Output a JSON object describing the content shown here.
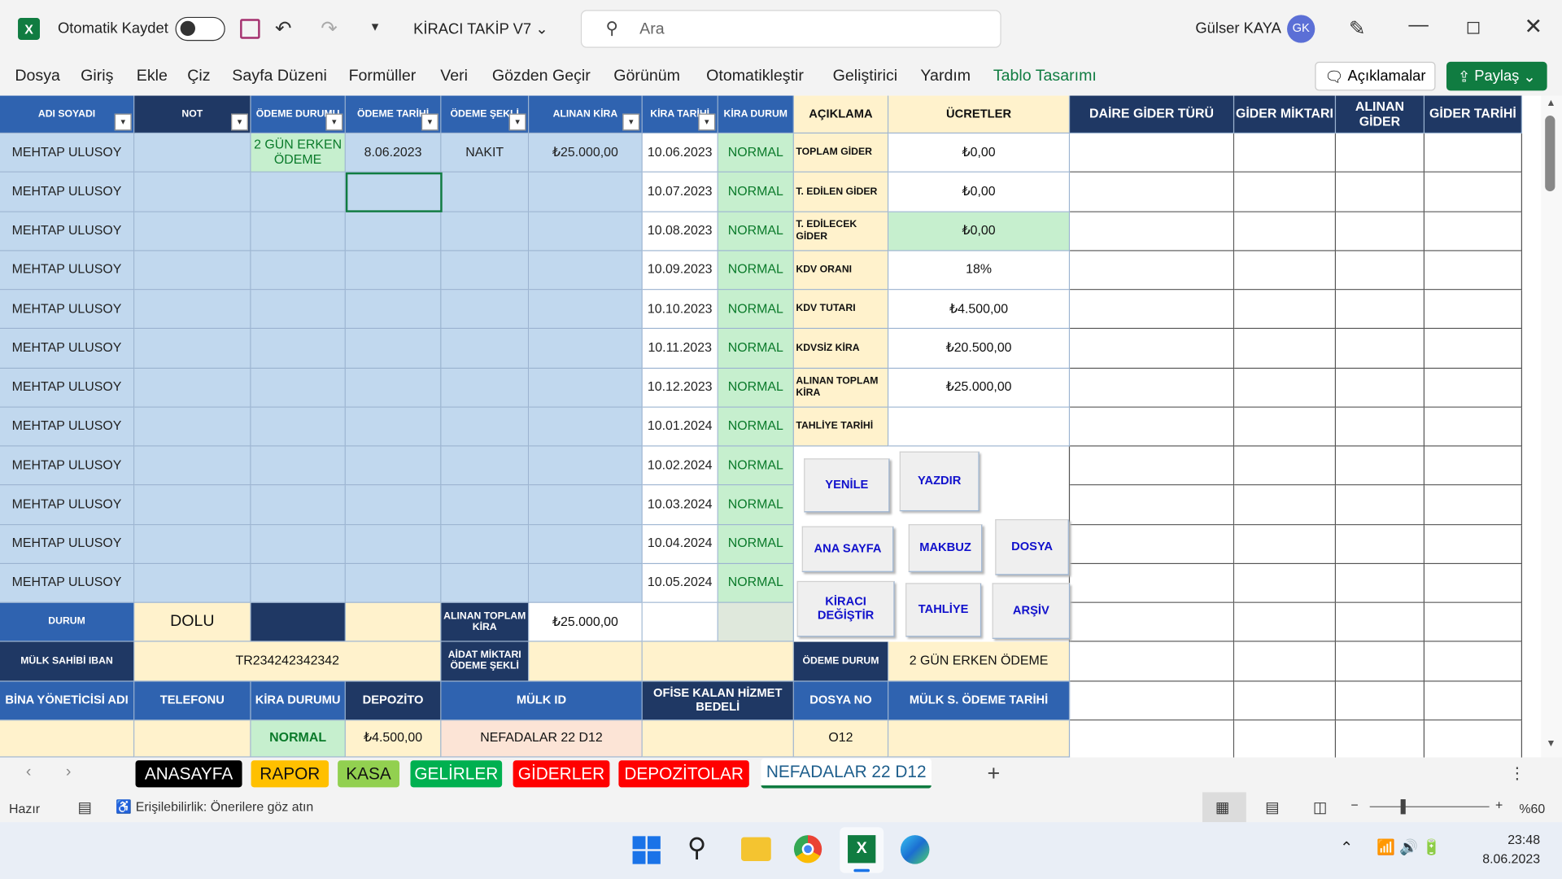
{
  "titlebar": {
    "autosave": "Otomatik Kaydet",
    "file": "KİRACI TAKİP V7",
    "search": "Ara",
    "user": "Gülser KAYA",
    "initials": "GK"
  },
  "ribbon": {
    "tabs": [
      "Dosya",
      "Giriş",
      "Ekle",
      "Çiz",
      "Sayfa Düzeni",
      "Formüller",
      "Veri",
      "Gözden Geçir",
      "Görünüm",
      "Otomatikleştir",
      "Geliştirici",
      "Yardım",
      "Tablo Tasarımı"
    ],
    "comments": "Açıklamalar",
    "share": "Paylaş"
  },
  "table": {
    "headers": [
      "ADI SOYADI",
      "NOT",
      "ÖDEME DURUMU",
      "ÖDEME TARİHİ",
      "ÖDEME ŞEKLİ",
      "ALINAN KİRA",
      "KİRA TARİHİ",
      "KİRA DURUM"
    ],
    "rows": [
      {
        "name": "MEHTAP ULUSOY",
        "status": "2 GÜN ERKEN ÖDEME",
        "date": "8.06.2023",
        "method": "NAKIT",
        "amount": "₺25.000,00",
        "due": "10.06.2023",
        "state": "NORMAL"
      },
      {
        "name": "MEHTAP ULUSOY",
        "due": "10.07.2023",
        "state": "NORMAL"
      },
      {
        "name": "MEHTAP ULUSOY",
        "due": "10.08.2023",
        "state": "NORMAL"
      },
      {
        "name": "MEHTAP ULUSOY",
        "due": "10.09.2023",
        "state": "NORMAL"
      },
      {
        "name": "MEHTAP ULUSOY",
        "due": "10.10.2023",
        "state": "NORMAL"
      },
      {
        "name": "MEHTAP ULUSOY",
        "due": "10.11.2023",
        "state": "NORMAL"
      },
      {
        "name": "MEHTAP ULUSOY",
        "due": "10.12.2023",
        "state": "NORMAL"
      },
      {
        "name": "MEHTAP ULUSOY",
        "due": "10.01.2024",
        "state": "NORMAL"
      },
      {
        "name": "MEHTAP ULUSOY",
        "due": "10.02.2024",
        "state": "NORMAL"
      },
      {
        "name": "MEHTAP ULUSOY",
        "due": "10.03.2024",
        "state": "NORMAL"
      },
      {
        "name": "MEHTAP ULUSOY",
        "due": "10.04.2024",
        "state": "NORMAL"
      },
      {
        "name": "MEHTAP ULUSOY",
        "due": "10.05.2024",
        "state": "NORMAL"
      }
    ]
  },
  "summary": {
    "headers": [
      "AÇIKLAMA",
      "ÜCRETLER"
    ],
    "rows": [
      [
        "TOPLAM GİDER",
        "₺0,00"
      ],
      [
        "T. EDİLEN GİDER",
        "₺0,00"
      ],
      [
        "T. EDİLECEK GİDER",
        "₺0,00"
      ],
      [
        "KDV ORANI",
        "18%"
      ],
      [
        "KDV TUTARI",
        "₺4.500,00"
      ],
      [
        "KDVSİZ KİRA",
        "₺20.500,00"
      ],
      [
        "ALINAN TOPLAM KİRA",
        "₺25.000,00"
      ],
      [
        "TAHLİYE TARİHİ"
      ]
    ]
  },
  "expenses": {
    "headers": [
      "DAİRE GİDER TÜRÜ",
      "GİDER MİKTARI",
      "ALINAN GİDER",
      "GİDER TARİHİ"
    ]
  },
  "buttons": [
    "YENİLE",
    "YAZDIR",
    "ANA SAYFA",
    "MAKBUZ",
    "DOSYA",
    "KİRACI DEĞİŞTİR",
    "TAHLİYE",
    "ARŞİV"
  ],
  "footer": {
    "rows": [
      [
        "DURUM",
        "DOLU",
        "ALINAN TOPLAM KİRA",
        "₺25.000,00"
      ],
      [
        "MÜLK SAHİBİ IBAN",
        "TR234242342342",
        "AİDAT MİKTARI ÖDEME ŞEKLİ",
        "ÖDEME DURUM",
        "2 GÜN ERKEN ÖDEME"
      ],
      [
        "BİNA YÖNETİCİSİ ADI",
        "TELEFONU",
        "KİRA DURUMU",
        "DEPOZİTO",
        "MÜLK ID",
        "OFİSE KALAN HİZMET BEDELİ",
        "DOSYA NO",
        "MÜLK S. ÖDEME TARİHİ"
      ],
      [
        "NORMAL",
        "₺4.500,00",
        "NEFADALAR 22 D12",
        "O12"
      ]
    ]
  },
  "sheets": [
    "ANASAYFA",
    "RAPOR",
    "KASA",
    "GELİRLER",
    "GİDERLER",
    "DEPOZİTOLAR",
    "NEFADALAR 22 D12"
  ],
  "status": {
    "ready": "Hazır",
    "accessibility": "Erişilebilirlik: Önerilere göz atın",
    "zoom": "%60"
  },
  "taskbar": {
    "time": "23:48",
    "date": "8.06.2023"
  }
}
